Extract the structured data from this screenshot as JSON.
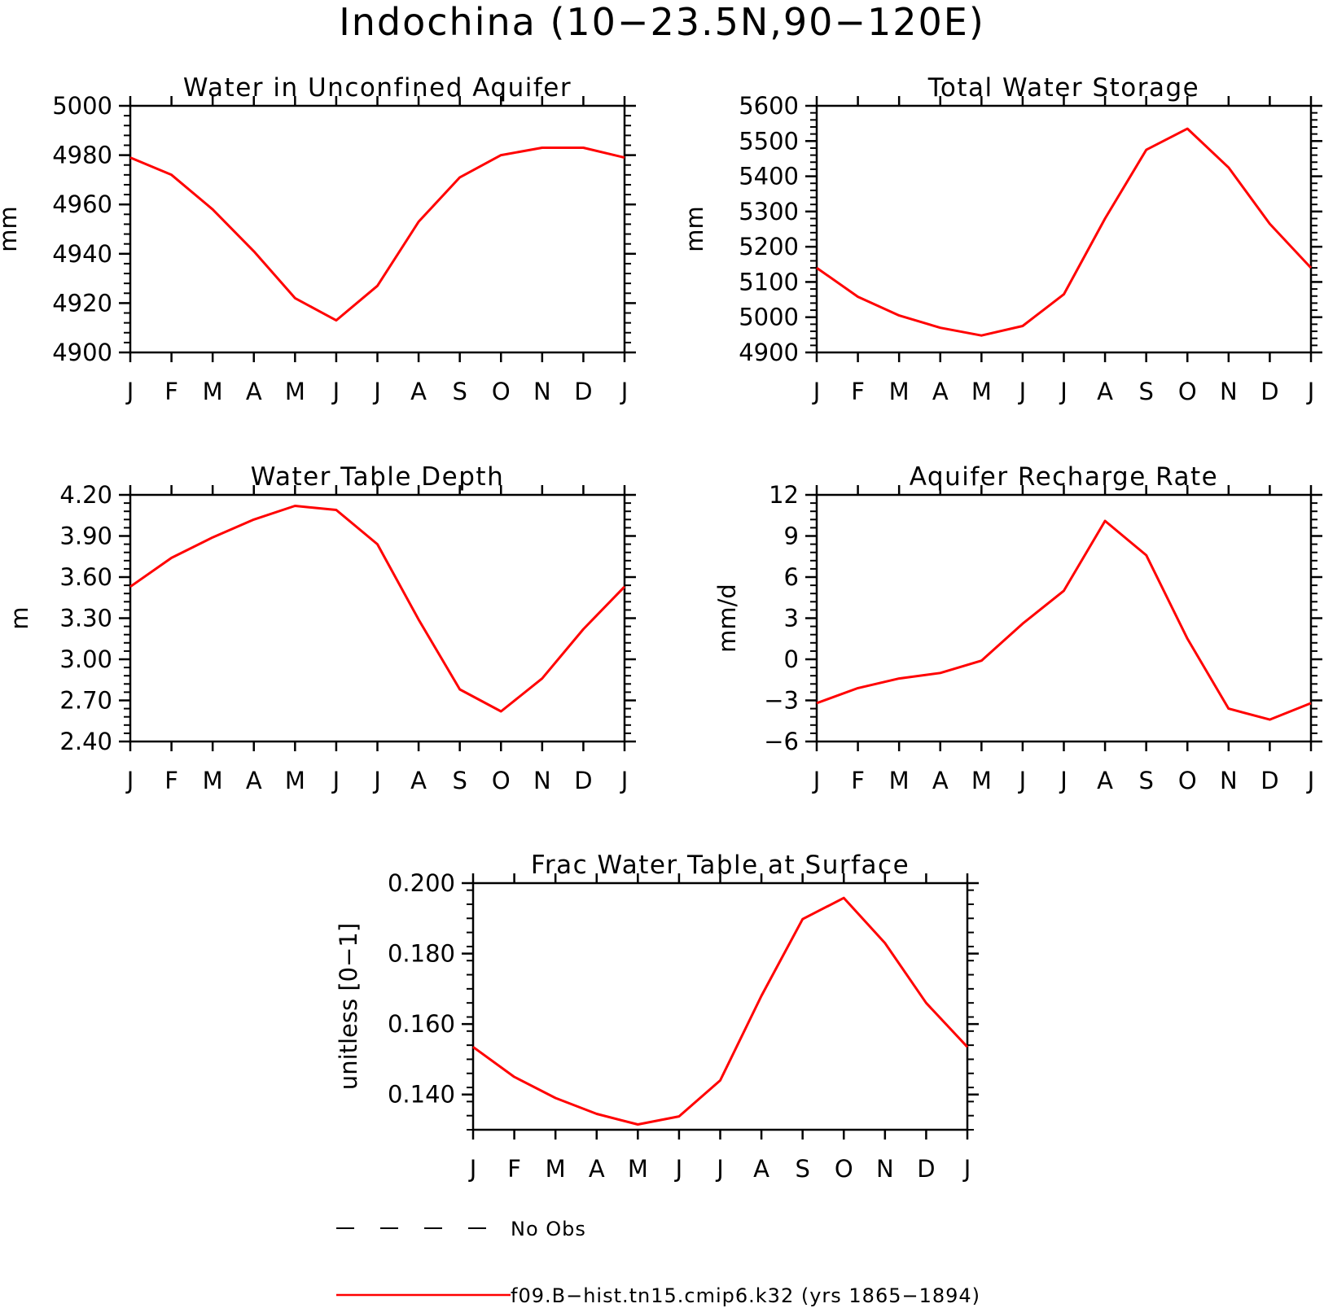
{
  "title": "Indochina (10−23.5N,90−120E)",
  "months": [
    "J",
    "F",
    "M",
    "A",
    "M",
    "J",
    "J",
    "A",
    "S",
    "O",
    "N",
    "D",
    "J"
  ],
  "colors": {
    "model": "#ff0000",
    "obs": "#000000",
    "axis": "#000000"
  },
  "chart_data": [
    {
      "type": "line",
      "title": "Water in Unconfined Aquifer",
      "ylabel": "mm",
      "ylim": [
        4900,
        5000
      ],
      "yticks": [
        "4900",
        "4920",
        "4940",
        "4960",
        "4980",
        "5000"
      ],
      "series": [
        {
          "name": "f09.B−hist.tn15.cmip6.k32 (yrs 1865−1894)",
          "values": [
            4979,
            4972,
            4958,
            4941,
            4922,
            4913,
            4927,
            4953,
            4971,
            4980,
            4983,
            4983,
            4979
          ]
        }
      ]
    },
    {
      "type": "line",
      "title": "Total Water Storage",
      "ylabel": "mm",
      "ylim": [
        4900,
        5600
      ],
      "yticks": [
        "4900",
        "5000",
        "5100",
        "5200",
        "5300",
        "5400",
        "5500",
        "5600"
      ],
      "series": [
        {
          "name": "f09.B−hist.tn15.cmip6.k32 (yrs 1865−1894)",
          "values": [
            5140,
            5058,
            5005,
            4970,
            4948,
            4975,
            5065,
            5280,
            5475,
            5535,
            5425,
            5265,
            5140
          ]
        }
      ]
    },
    {
      "type": "line",
      "title": "Water Table Depth",
      "ylabel": "m",
      "ylim": [
        2.4,
        4.2
      ],
      "yticks": [
        "2.40",
        "2.70",
        "3.00",
        "3.30",
        "3.60",
        "3.90",
        "4.20"
      ],
      "series": [
        {
          "name": "f09.B−hist.tn15.cmip6.k32 (yrs 1865−1894)",
          "values": [
            3.53,
            3.74,
            3.89,
            4.02,
            4.12,
            4.09,
            3.84,
            3.29,
            2.78,
            2.62,
            2.86,
            3.22,
            3.53
          ]
        }
      ]
    },
    {
      "type": "line",
      "title": "Aquifer Recharge Rate",
      "ylabel": "mm/d",
      "ylim": [
        -6,
        12
      ],
      "yticks": [
        "−6",
        "−3",
        "0",
        "3",
        "6",
        "9",
        "12"
      ],
      "series": [
        {
          "name": "f09.B−hist.tn15.cmip6.k32 (yrs 1865−1894)",
          "values": [
            -3.2,
            -2.1,
            -1.4,
            -1.0,
            -0.1,
            2.6,
            5.0,
            10.1,
            7.6,
            1.5,
            -3.6,
            -4.4,
            -3.2
          ]
        }
      ]
    },
    {
      "type": "line",
      "title": "Frac Water Table at Surface",
      "ylabel": "unitless [0−1]",
      "ylim": [
        0.13,
        0.2
      ],
      "yticks": [
        "0.140",
        "0.160",
        "0.180",
        "0.200"
      ],
      "series": [
        {
          "name": "f09.B−hist.tn15.cmip6.k32 (yrs 1865−1894)",
          "values": [
            0.1535,
            0.145,
            0.139,
            0.1345,
            0.1315,
            0.1338,
            0.144,
            0.168,
            0.1898,
            0.1958,
            0.183,
            0.166,
            0.1535
          ]
        }
      ]
    }
  ],
  "legend": {
    "obs_label": "No Obs",
    "model_label": "f09.B−hist.tn15.cmip6.k32 (yrs 1865−1894)"
  }
}
